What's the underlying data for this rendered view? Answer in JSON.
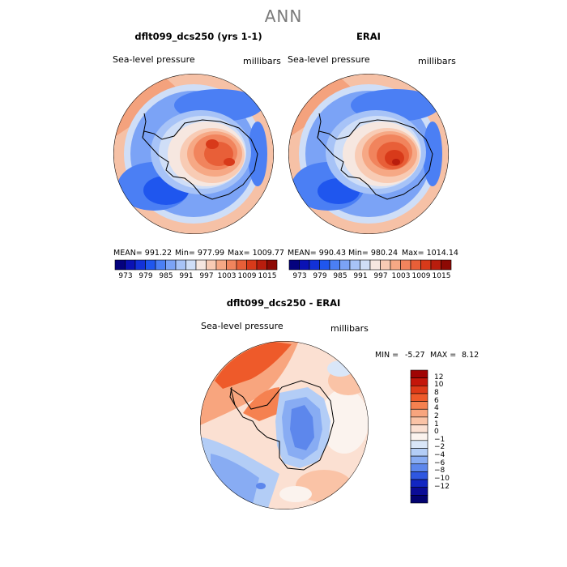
{
  "figure": {
    "title": "ANN",
    "panels": [
      {
        "title": "dflt099_dcs250 (yrs 1-1)",
        "variable": "Sea-level pressure",
        "units": "millibars",
        "stats": {
          "mean": "MEAN= 991.22",
          "min": "Min= 977.99",
          "max": "Max= 1009.77"
        }
      },
      {
        "title": "ERAI",
        "variable": "Sea-level pressure",
        "units": "millibars",
        "stats": {
          "mean": "MEAN= 990.43",
          "min": "Min= 980.24",
          "max": "Max= 1014.14"
        }
      }
    ],
    "shared_colorbar_ticks": [
      "973",
      "979",
      "985",
      "991",
      "997",
      "1003",
      "1009",
      "1015"
    ],
    "shared_colorbar_colors": [
      "#04027e",
      "#0a12b4",
      "#1231d8",
      "#1f56ee",
      "#4b7ff4",
      "#7ba3f6",
      "#a7c3f7",
      "#cfdef7",
      "#f6e7e0",
      "#f8cbb4",
      "#f6a885",
      "#f1845d",
      "#e85f38",
      "#d83a1a",
      "#b91d0d",
      "#8d0904"
    ],
    "difference": {
      "title": "dflt099_dcs250 - ERAI",
      "variable": "Sea-level pressure",
      "units": "millibars",
      "min_label": "MIN =",
      "min_value": "-5.27",
      "max_label": "MAX =",
      "max_value": "8.12",
      "colorbar_ticks": [
        "12",
        "10",
        "8",
        "6",
        "4",
        "2",
        "1",
        "0",
        "−1",
        "−2",
        "−4",
        "−6",
        "−8",
        "−10",
        "−12"
      ],
      "colorbar_colors": [
        "#a00404",
        "#c4160a",
        "#de3a18",
        "#ee5a2a",
        "#f58150",
        "#f8a57e",
        "#fac3a6",
        "#fbe0d2",
        "#fbf3ee",
        "#d9e6f8",
        "#b3cdf6",
        "#88acf3",
        "#5d87ec",
        "#2f57e0",
        "#1226c2",
        "#0b0c96",
        "#030270"
      ]
    }
  }
}
